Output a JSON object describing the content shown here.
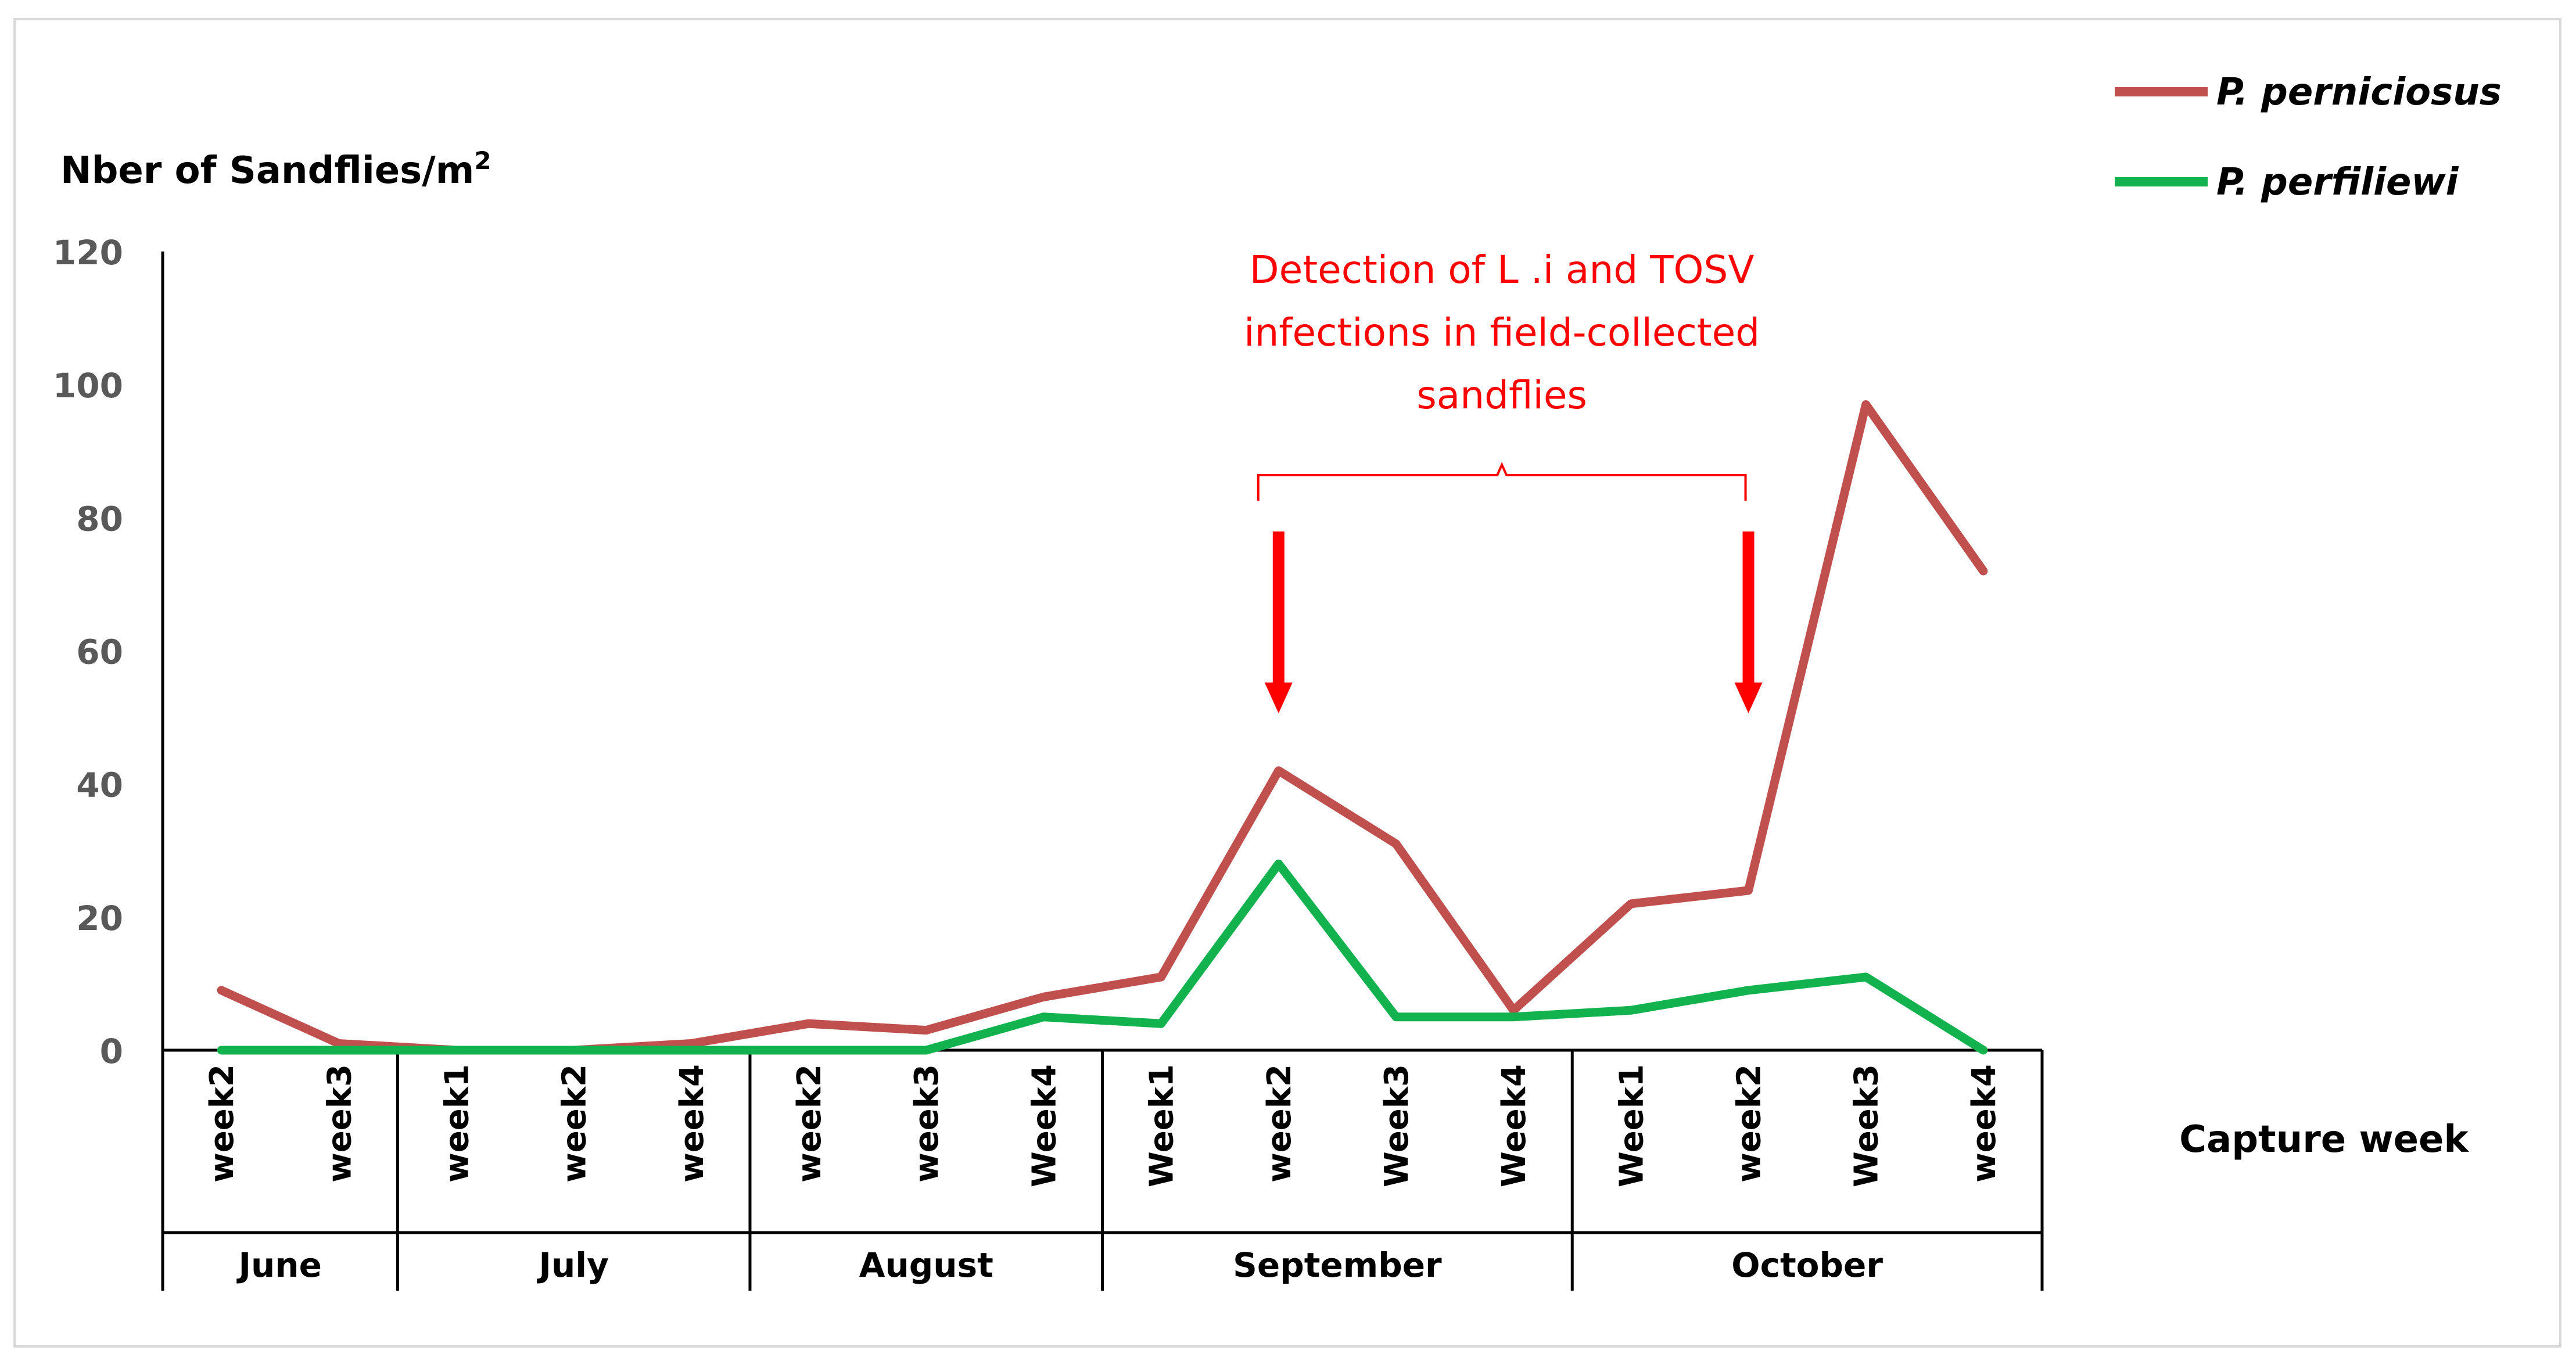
{
  "chart_data": {
    "type": "line",
    "ylabel": "Nber of Sandflies/m",
    "ylabel_sup": "2",
    "xlabel": "Capture week",
    "ylim": [
      0,
      120
    ],
    "yticks": [
      0,
      20,
      40,
      60,
      80,
      100,
      120
    ],
    "categories": [
      "week2",
      "week3",
      "week1",
      "week2",
      "week4",
      "week2",
      "week3",
      "Week4",
      "Week1",
      "week2",
      "Week3",
      "Week4",
      "Week1",
      "week2",
      "Week3",
      "week4"
    ],
    "months": [
      {
        "name": "June",
        "count": 2
      },
      {
        "name": "July",
        "count": 3
      },
      {
        "name": "August",
        "count": 3
      },
      {
        "name": "September",
        "count": 4
      },
      {
        "name": "October",
        "count": 4
      }
    ],
    "series": [
      {
        "name": "P. perniciosus",
        "color": "#c0504d",
        "values": [
          9,
          1,
          0,
          0,
          1,
          4,
          3,
          8,
          11,
          42,
          31,
          6,
          22,
          24,
          97,
          72
        ]
      },
      {
        "name": "P. perfiliewi",
        "color": "#12b24f",
        "values": [
          0,
          0,
          0,
          0,
          0,
          0,
          0,
          5,
          4,
          28,
          5,
          5,
          6,
          9,
          11,
          0
        ]
      }
    ],
    "annotation": {
      "lines": [
        "Detection of L .i and TOSV",
        "infections in field-collected",
        "sandflies"
      ],
      "color": "#ff0000",
      "from_index": 9,
      "to_index": 13
    }
  }
}
